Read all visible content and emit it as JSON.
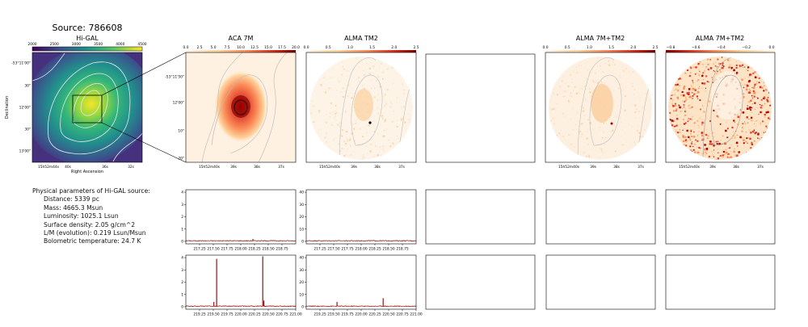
{
  "figure": {
    "source_title": "Source: 786608"
  },
  "panels": {
    "higal": {
      "title": "Hi-GAL",
      "cbar_ticks": [
        "2000",
        "2500",
        "3000",
        "3500",
        "4000",
        "4500"
      ],
      "ylabel": "Declination",
      "xlabel": "Right Ascension",
      "yticks": [
        "-53°11'00\"",
        "30\"",
        "12'00\"",
        "30\"",
        "13'00\""
      ],
      "xticks": [
        "15h52m44s",
        "40s",
        "36s",
        "32s"
      ]
    },
    "aca7m": {
      "title": "ACA 7M",
      "cbar_ticks": [
        "0.0",
        "2.5",
        "5.0",
        "7.5",
        "10.0",
        "12.5",
        "15.0",
        "17.5",
        "20.0"
      ],
      "yticks": [
        "-53°11'50\"",
        "12'00\"",
        "10\"",
        "20\""
      ],
      "xticks": [
        "15h52m40s",
        "39s",
        "38s",
        "37s"
      ]
    },
    "almatm2": {
      "title": "ALMA TM2",
      "cbar_ticks": [
        "0.0",
        "0.5",
        "1.0",
        "1.5",
        "2.0",
        "2.5"
      ],
      "xticks": [
        "15h52m40s",
        "39s",
        "38s",
        "37s"
      ]
    },
    "alma7mtm2": {
      "title": "ALMA 7M+TM2",
      "cbar_ticks": [
        "0.0",
        "0.5",
        "1.0",
        "1.5",
        "2.0",
        "2.5"
      ],
      "xticks": [
        "15h52m40s",
        "39s",
        "38s",
        "37s"
      ]
    },
    "alma7mtm2_neg": {
      "title": "ALMA 7M+TM2",
      "cbar_ticks": [
        "−0.8",
        "−0.6",
        "−0.4",
        "−0.2",
        "0.0"
      ],
      "xticks": [
        "15h52m40s",
        "39s",
        "38s",
        "37s"
      ]
    }
  },
  "properties": {
    "heading": "Physical parameters of Hi-GAL source:",
    "distance": "Distance: 5339 pc",
    "mass": "Mass: 4665.3 Msun",
    "luminosity": "Luminosity: 1025.1 Lsun",
    "surface_density": "Surface density: 2.05 g/cm^2",
    "lm": "L/M (evolution): 0.219 Lsun/Msun",
    "tbol": "Bolometric temperature: 24.7 K"
  },
  "chart_data": [
    {
      "type": "line",
      "panel": "spectrum-aca7m-row1",
      "xlim": [
        217.0,
        219.0
      ],
      "ylim": [
        -0.2,
        4.2
      ],
      "xticks": [
        "217.25",
        "217.50",
        "217.75",
        "218.00",
        "218.25",
        "218.50",
        "218.75"
      ],
      "yticks": [
        "0",
        "1",
        "2",
        "3",
        "4"
      ],
      "peaks": [
        {
          "x": 218.22,
          "y": 0.2
        }
      ],
      "baseline": 0.05,
      "color": "#8b0000"
    },
    {
      "type": "line",
      "panel": "spectrum-almatm2-row1",
      "xlim": [
        217.0,
        219.0
      ],
      "ylim": [
        -2,
        42
      ],
      "xticks": [
        "217.25",
        "217.50",
        "217.75",
        "218.00",
        "218.25",
        "218.50",
        "218.75"
      ],
      "yticks": [
        "0",
        "10",
        "20",
        "30",
        "40"
      ],
      "peaks": [],
      "baseline": 0.5,
      "color": "#8b0000"
    },
    {
      "type": "line",
      "panel": "spectrum-aca7m-row2",
      "xlim": [
        219.0,
        221.0
      ],
      "ylim": [
        -0.2,
        4.2
      ],
      "xticks": [
        "219.25",
        "219.50",
        "219.75",
        "220.00",
        "220.25",
        "220.50",
        "220.75",
        "221.00"
      ],
      "yticks": [
        "0",
        "1",
        "2",
        "3",
        "4"
      ],
      "peaks": [
        {
          "x": 219.56,
          "y": 3.9
        },
        {
          "x": 220.4,
          "y": 4.1
        },
        {
          "x": 220.42,
          "y": 0.5
        },
        {
          "x": 219.51,
          "y": 0.4
        }
      ],
      "baseline": 0.05,
      "color": "#8b0000"
    },
    {
      "type": "line",
      "panel": "spectrum-almatm2-row2",
      "xlim": [
        219.0,
        221.0
      ],
      "ylim": [
        -2,
        42
      ],
      "xticks": [
        "219.25",
        "219.50",
        "219.75",
        "220.00",
        "220.25",
        "220.50",
        "220.75",
        "221.00"
      ],
      "yticks": [
        "0",
        "10",
        "20",
        "30",
        "40"
      ],
      "peaks": [
        {
          "x": 219.56,
          "y": 4
        },
        {
          "x": 220.4,
          "y": 7
        }
      ],
      "baseline": 0.5,
      "color": "#8b0000"
    }
  ]
}
